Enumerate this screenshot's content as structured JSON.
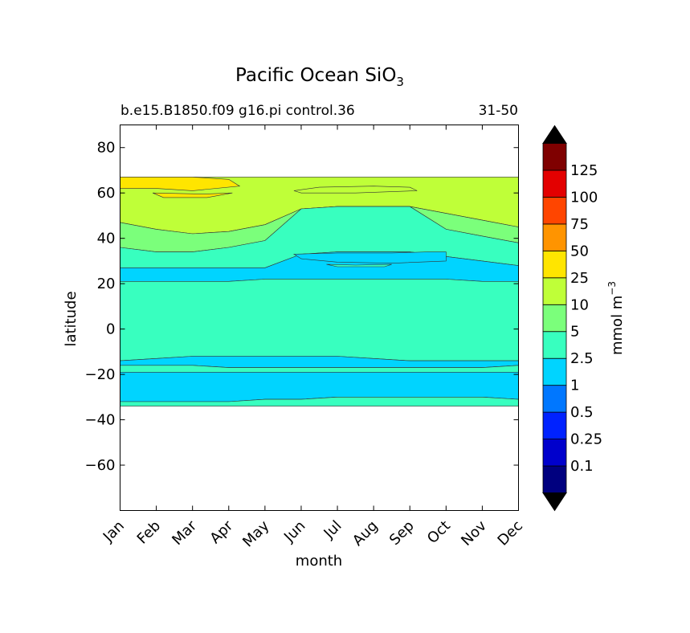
{
  "chart_data": {
    "type": "contourf",
    "title": "Pacific Ocean SiO",
    "title_subscript": "3",
    "subtitle_left": "b.e15.B1850.f09 g16.pi control.36",
    "subtitle_right": "31-50",
    "xlabel": "month",
    "ylabel": "latitude",
    "x_ticks": [
      "Jan",
      "Feb",
      "Mar",
      "Apr",
      "May",
      "Jun",
      "Jul",
      "Aug",
      "Sep",
      "Oct",
      "Nov",
      "Dec"
    ],
    "ylim": [
      -80,
      90
    ],
    "y_ticks": [
      80,
      60,
      40,
      20,
      0,
      -20,
      -40,
      -60
    ],
    "y_tick_labels": [
      "80",
      "60",
      "40",
      "20",
      "0",
      "−20",
      "−40",
      "−60"
    ],
    "colorbar": {
      "label": "mmol m",
      "label_exponent": "−3",
      "levels": [
        "0.1",
        "0.25",
        "0.5",
        "1",
        "2.5",
        "5",
        "10",
        "25",
        "50",
        "75",
        "100",
        "125"
      ],
      "colors": [
        "#00007f",
        "#0000cc",
        "#0022ff",
        "#0077ff",
        "#00d4ff",
        "#38ffbf",
        "#7bff7b",
        "#bfff38",
        "#ffe500",
        "#ff9400",
        "#ff4500",
        "#e30000",
        "#7f0000"
      ],
      "extend_low_color": "#000000",
      "extend_high_color": "#000000"
    },
    "bands": [
      {
        "name": "north-high-10-25",
        "level": 7,
        "top": [
          67,
          67,
          67,
          67,
          67,
          67,
          67,
          67,
          67,
          67,
          67,
          67
        ],
        "bottom": [
          47,
          44,
          42,
          43,
          46,
          53,
          54,
          54,
          54,
          51,
          48,
          45
        ]
      },
      {
        "name": "north-5-10",
        "level": 6,
        "top": [
          47,
          44,
          42,
          43,
          46,
          53,
          54,
          54,
          54,
          51,
          48,
          45
        ],
        "bottom": [
          36,
          34,
          34,
          36,
          39,
          53,
          54,
          54,
          54,
          44,
          41,
          38
        ]
      },
      {
        "name": "north-2.5-5",
        "level": 5,
        "top": [
          36,
          34,
          34,
          36,
          39,
          53,
          54,
          54,
          54,
          44,
          41,
          38
        ],
        "bottom": [
          27,
          27,
          27,
          27,
          27,
          33,
          34,
          34,
          34,
          32,
          30,
          28
        ]
      },
      {
        "name": "north-1-2.5",
        "level": 4,
        "top": [
          27,
          27,
          27,
          27,
          27,
          33,
          34,
          34,
          34,
          32,
          30,
          28
        ],
        "bottom": [
          21,
          21,
          21,
          21,
          22,
          22,
          22,
          22,
          22,
          22,
          21,
          21
        ]
      },
      {
        "name": "equatorial-2.5-5",
        "level": 5,
        "top": [
          21,
          21,
          21,
          21,
          22,
          22,
          22,
          22,
          22,
          22,
          21,
          21
        ],
        "bottom": [
          -14,
          -13,
          -12,
          -12,
          -12,
          -12,
          -12,
          -13,
          -14,
          -14,
          -14,
          -14
        ]
      },
      {
        "name": "south-1-2.5-a",
        "level": 4,
        "top": [
          -14,
          -13,
          -12,
          -12,
          -12,
          -12,
          -12,
          -13,
          -14,
          -14,
          -14,
          -14
        ],
        "bottom": [
          -16,
          -16,
          -16,
          -17,
          -17,
          -17,
          -17,
          -17,
          -17,
          -17,
          -17,
          -16
        ]
      },
      {
        "name": "south-2.5-5-thin",
        "level": 5,
        "top": [
          -16,
          -16,
          -16,
          -17,
          -17,
          -17,
          -17,
          -17,
          -17,
          -17,
          -17,
          -16
        ],
        "bottom": [
          -19,
          -19,
          -19,
          -19,
          -19,
          -19,
          -19,
          -19,
          -19,
          -19,
          -19,
          -19
        ]
      },
      {
        "name": "south-1-2.5-b",
        "level": 4,
        "top": [
          -19,
          -19,
          -19,
          -19,
          -19,
          -19,
          -19,
          -19,
          -19,
          -19,
          -19,
          -19
        ],
        "bottom": [
          -32,
          -32,
          -32,
          -32,
          -31,
          -31,
          -30,
          -30,
          -30,
          -30,
          -30,
          -31
        ]
      },
      {
        "name": "south-edge-2.5-5",
        "level": 5,
        "top": [
          -32,
          -32,
          -32,
          -32,
          -31,
          -31,
          -30,
          -30,
          -30,
          -30,
          -30,
          -31
        ],
        "bottom": [
          -34,
          -34,
          -34,
          -34,
          -34,
          -34,
          -34,
          -34,
          -34,
          -34,
          -34,
          -34
        ]
      }
    ],
    "patches": [
      {
        "name": "yellow-25-50-patch",
        "level": 8,
        "top": [
          [
            0,
            67
          ],
          [
            1,
            67
          ],
          [
            2,
            67
          ],
          [
            3,
            66
          ],
          [
            3.3,
            63
          ],
          [
            2,
            61
          ],
          [
            1,
            62
          ],
          [
            0,
            62
          ]
        ],
        "bottom": [
          [
            0,
            62
          ],
          [
            3.3,
            63
          ]
        ]
      },
      {
        "name": "yellow-25-50-patch-small",
        "level": 8,
        "top": [
          [
            0.9,
            60
          ],
          [
            2.3,
            59.5
          ],
          [
            3.1,
            60
          ],
          [
            2.4,
            58
          ],
          [
            1.2,
            58
          ]
        ],
        "bottom": []
      },
      {
        "name": "green-10-25-summer-patch",
        "level": 7,
        "top": [
          [
            4.8,
            61
          ],
          [
            5.5,
            62.5
          ],
          [
            7,
            63
          ],
          [
            8,
            62.5
          ],
          [
            8.2,
            61
          ],
          [
            6.5,
            60
          ],
          [
            5,
            60
          ]
        ],
        "bottom": []
      },
      {
        "name": "blue-1-2.5-summer-tongue",
        "level": 4,
        "top": [
          [
            4.8,
            33
          ],
          [
            6,
            33.5
          ],
          [
            7.5,
            33.5
          ],
          [
            8.5,
            34
          ],
          [
            9,
            34
          ],
          [
            9,
            30
          ],
          [
            7.5,
            29
          ],
          [
            6,
            29.5
          ],
          [
            5,
            31
          ]
        ],
        "bottom": []
      },
      {
        "name": "green-2.5-5-tongue",
        "level": 5,
        "top": [
          [
            5.7,
            28.5
          ],
          [
            6.5,
            28.2
          ],
          [
            7.5,
            28.5
          ],
          [
            7.3,
            27.5
          ],
          [
            6,
            27.5
          ]
        ],
        "bottom": []
      }
    ]
  }
}
